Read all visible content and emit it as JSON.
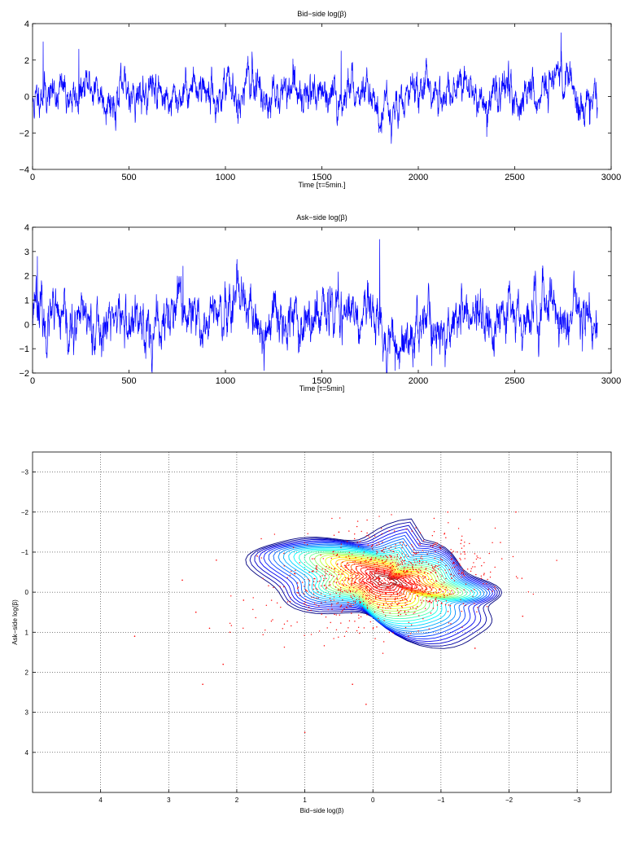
{
  "chart_data": [
    {
      "type": "line",
      "title": "Bid−side log(β)",
      "xlabel": "Time [τ=5min.]",
      "ylabel": "",
      "xlim": [
        0,
        3000
      ],
      "ylim": [
        -4,
        4
      ],
      "x_ticks": [
        "0",
        "500",
        "1000",
        "1500",
        "2000",
        "2500",
        "3000"
      ],
      "y_ticks": [
        "4",
        "2",
        "0",
        "−2",
        "−4"
      ],
      "grid": false,
      "series": [
        {
          "color": "#0000ff",
          "n_points": 2930,
          "anchors_x": [
            0,
            20,
            45,
            80,
            150,
            220,
            300,
            420,
            500,
            560,
            640,
            720,
            800,
            870,
            950,
            1000,
            1080,
            1150,
            1230,
            1300,
            1380,
            1470,
            1550,
            1620,
            1700,
            1760,
            1800,
            1870,
            1920,
            1960,
            2050,
            2150,
            2230,
            2320,
            2360,
            2420,
            2500,
            2560,
            2620,
            2680,
            2730,
            2760,
            2790,
            2830,
            2880,
            2930
          ],
          "anchors_y": [
            -0.5,
            -0.3,
            0.5,
            0.1,
            0.4,
            -0.2,
            0.6,
            -0.3,
            0.5,
            0.0,
            0.6,
            -0.4,
            0.4,
            0.7,
            -0.2,
            0.5,
            0.1,
            0.9,
            -0.3,
            0.4,
            0.0,
            0.6,
            -0.5,
            0.2,
            0.5,
            0.2,
            -0.8,
            -0.6,
            -0.4,
            0.2,
            0.6,
            -0.3,
            0.5,
            0.0,
            -0.5,
            0.4,
            -0.2,
            0.5,
            -0.3,
            0.6,
            1.4,
            0.4,
            1.0,
            -0.6,
            0.2,
            0.0
          ],
          "spikes_x": [
            55,
            240,
            1600,
            1810,
            2355,
            2740,
            2890
          ],
          "spikes_y": [
            3.0,
            2.6,
            2.5,
            -2.0,
            -2.2,
            3.5,
            -1.5
          ]
        }
      ]
    },
    {
      "type": "line",
      "title": "Ask−side log(β)",
      "xlabel": "Time [τ=5min]",
      "ylabel": "",
      "xlim": [
        0,
        3000
      ],
      "ylim": [
        -2,
        4
      ],
      "x_ticks": [
        "0",
        "500",
        "1000",
        "1500",
        "2000",
        "2500",
        "3000"
      ],
      "y_ticks": [
        "4",
        "3",
        "2",
        "1",
        "0",
        "−1",
        "−2"
      ],
      "grid": false,
      "series": [
        {
          "color": "#0000ff",
          "n_points": 2930,
          "anchors_x": [
            0,
            15,
            35,
            60,
            120,
            200,
            280,
            360,
            440,
            500,
            560,
            640,
            700,
            780,
            860,
            930,
            1000,
            1080,
            1150,
            1200,
            1260,
            1340,
            1420,
            1500,
            1580,
            1650,
            1720,
            1790,
            1830,
            1900,
            1960,
            2050,
            2130,
            2200,
            2280,
            2360,
            2440,
            2520,
            2600,
            2680,
            2760,
            2830,
            2930
          ],
          "anchors_y": [
            0.5,
            1.6,
            1.0,
            -0.2,
            0.2,
            -0.4,
            0.3,
            -0.3,
            0.5,
            -0.2,
            0.3,
            -0.5,
            0.4,
            0.6,
            -0.2,
            0.5,
            0.0,
            0.8,
            0.1,
            -0.6,
            0.2,
            0.6,
            -0.1,
            0.3,
            0.5,
            0.1,
            0.6,
            0.3,
            -0.5,
            -0.9,
            -0.3,
            0.4,
            -0.6,
            0.2,
            0.5,
            -0.2,
            0.4,
            0.6,
            0.0,
            0.8,
            0.2,
            0.5,
            0.0
          ],
          "spikes_x": [
            25,
            780,
            1200,
            1800,
            1880,
            2070,
            2600
          ],
          "spikes_y": [
            2.8,
            2.4,
            -1.9,
            3.5,
            -1.9,
            -1.7,
            2.0
          ]
        }
      ]
    },
    {
      "type": "scatter",
      "subtype": "scatter-with-density-contours",
      "title": "",
      "xlabel": "Bid−side log(β)",
      "ylabel": "Ask−side log(β)",
      "xlim": [
        5,
        -3.5
      ],
      "ylim": [
        -3.5,
        5.0
      ],
      "x_reversed": true,
      "y_reversed": true,
      "x_ticks": [
        4,
        3,
        2,
        1,
        0,
        -1,
        -2,
        -3
      ],
      "x_tick_labels": [
        "4",
        "3",
        "2",
        "1",
        "0",
        "−1",
        "−2",
        "−3"
      ],
      "y_ticks": [
        -3,
        -2,
        -1,
        0,
        1,
        2,
        3,
        4
      ],
      "y_tick_labels": [
        "−3",
        "−2",
        "−1",
        "0",
        "1",
        "2",
        "3",
        "4"
      ],
      "grid": true,
      "points_color": "#ff0000",
      "contour_center": [
        -0.2,
        -0.3
      ],
      "contour_count": 28,
      "contour_colors": [
        "#00007f",
        "#0000ff",
        "#007fff",
        "#00ffff",
        "#7fff7f",
        "#ffff00",
        "#ff7f00",
        "#ff0000",
        "#7f0000"
      ],
      "outlier_points": [
        [
          3.5,
          1.1
        ],
        [
          2.5,
          2.3
        ],
        [
          2.2,
          1.8
        ],
        [
          2.3,
          -0.8
        ],
        [
          2.6,
          0.5
        ],
        [
          2.1,
          1.0
        ],
        [
          1.9,
          0.2
        ],
        [
          1.0,
          3.5
        ],
        [
          0.3,
          2.3
        ],
        [
          0.1,
          2.8
        ],
        [
          -0.9,
          -1.2
        ],
        [
          -1.1,
          -2.0
        ],
        [
          -2.1,
          -2.0
        ],
        [
          -2.2,
          0.6
        ],
        [
          -1.3,
          -1.3
        ],
        [
          0.5,
          -1.5
        ],
        [
          1.7,
          -0.9
        ],
        [
          2.8,
          -0.3
        ],
        [
          2.4,
          0.9
        ],
        [
          -1.5,
          1.4
        ]
      ]
    }
  ]
}
